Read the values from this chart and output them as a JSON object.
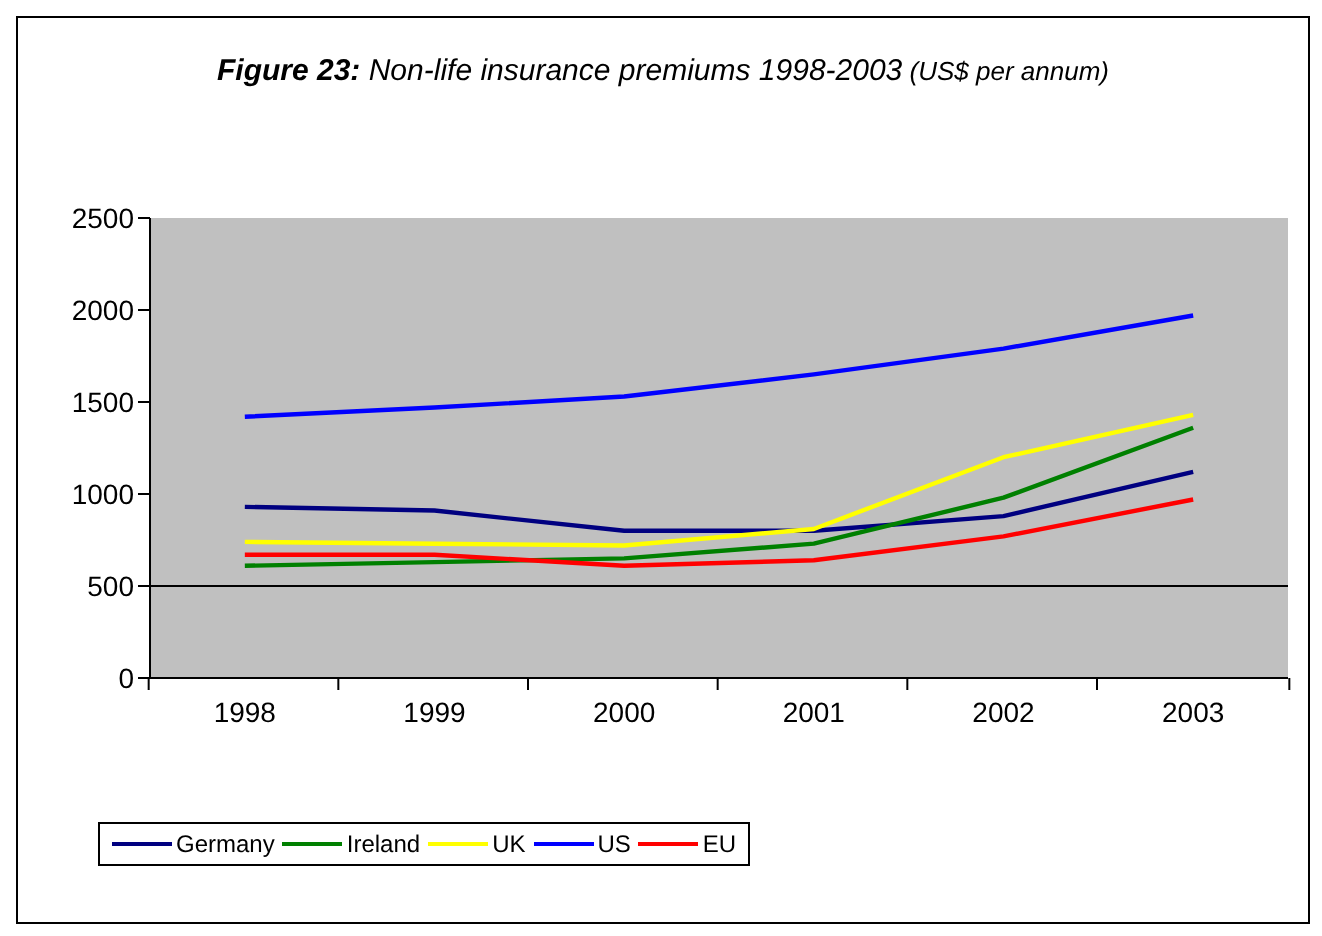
{
  "chart_data": {
    "type": "line",
    "title": "Figure 23: Non-life insurance premiums 1998-2003",
    "subtitle": "(US$ per annum)",
    "categories": [
      "1998",
      "1999",
      "2000",
      "2001",
      "2002",
      "2003"
    ],
    "series": [
      {
        "name": "Germany",
        "color": "#000080",
        "values": [
          930,
          910,
          800,
          800,
          880,
          1120
        ]
      },
      {
        "name": "Ireland",
        "color": "#008000",
        "values": [
          610,
          630,
          650,
          730,
          980,
          1360
        ]
      },
      {
        "name": "UK",
        "color": "#ffff00",
        "values": [
          740,
          730,
          720,
          810,
          1200,
          1430
        ]
      },
      {
        "name": "US",
        "color": "#0000ff",
        "values": [
          1420,
          1470,
          1530,
          1650,
          1790,
          1970
        ]
      },
      {
        "name": "EU",
        "color": "#ff0000",
        "values": [
          670,
          670,
          610,
          640,
          770,
          970
        ]
      }
    ],
    "ylim": [
      0,
      2500
    ],
    "yticks": [
      0,
      500,
      1000,
      1500,
      2000,
      2500
    ],
    "ref_lines": [
      {
        "axis": "y",
        "value": 500,
        "color": "#000000"
      }
    ],
    "legend": "bottom",
    "marker": "none",
    "line_style": "solid"
  }
}
